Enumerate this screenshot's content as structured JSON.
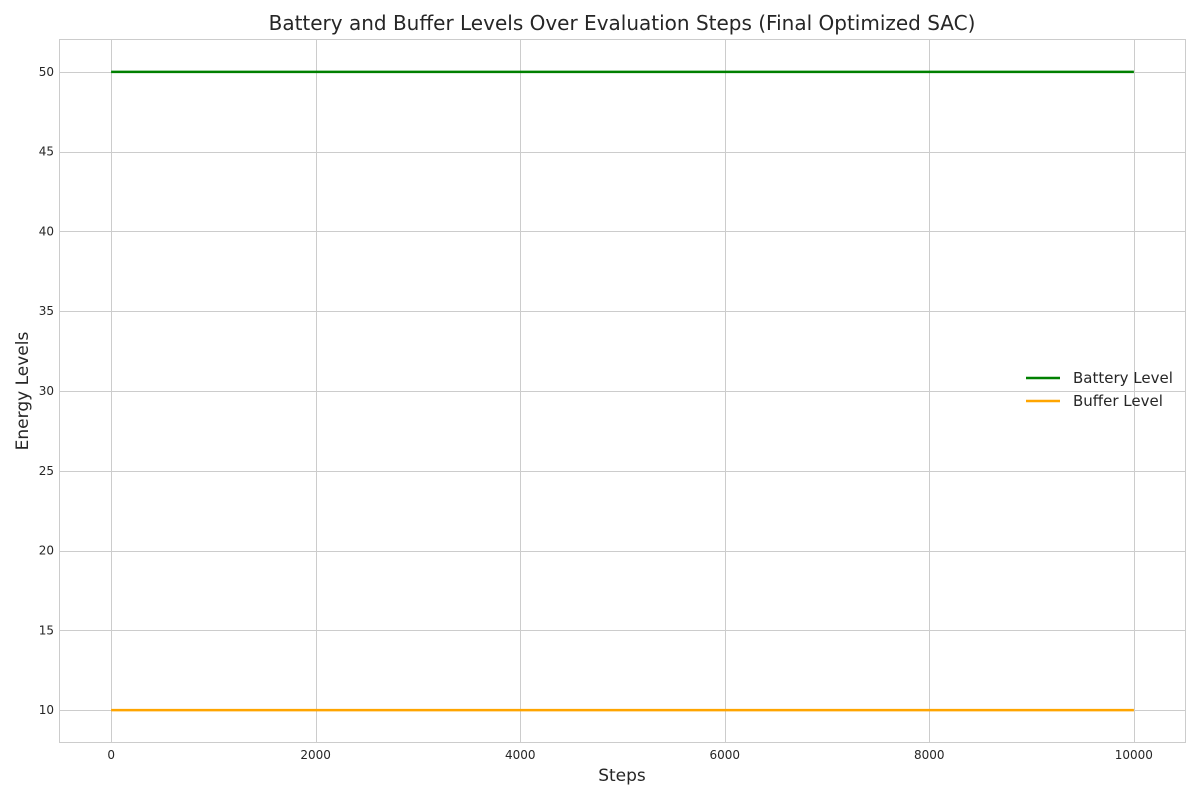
{
  "chart_data": {
    "type": "line",
    "title": "Battery and Buffer Levels Over Evaluation Steps (Final Optimized SAC)",
    "xlabel": "Steps",
    "ylabel": "Energy Levels",
    "xlim": [
      -500,
      10500
    ],
    "ylim": [
      8,
      52
    ],
    "xticks": [
      0,
      2000,
      4000,
      6000,
      8000,
      10000
    ],
    "yticks": [
      10,
      15,
      20,
      25,
      30,
      35,
      40,
      45,
      50
    ],
    "grid": true,
    "legend_position": "center-right",
    "series": [
      {
        "name": "Battery Level",
        "color": "#008000",
        "x": [
          0,
          10000
        ],
        "y": [
          50,
          50
        ]
      },
      {
        "name": "Buffer Level",
        "color": "#FFA500",
        "x": [
          0,
          10000
        ],
        "y": [
          10,
          10
        ]
      }
    ]
  }
}
